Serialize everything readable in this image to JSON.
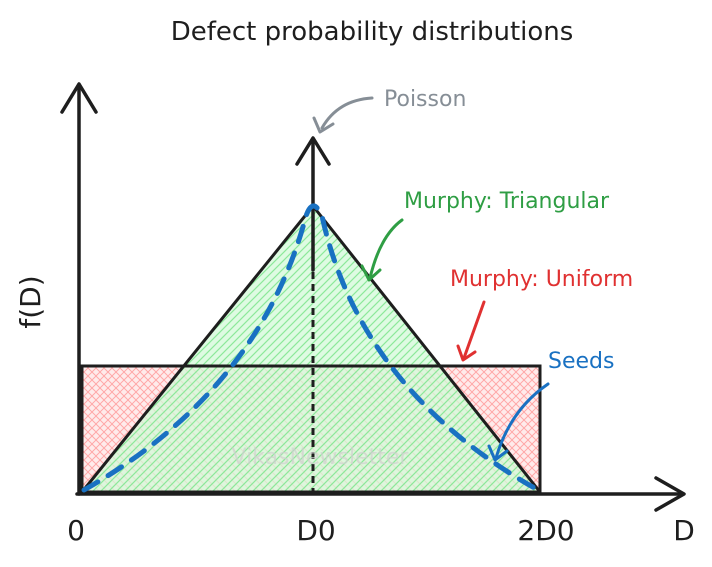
{
  "title": "Defect probability distributions",
  "labels": {
    "poisson": "Poisson",
    "triangular": "Murphy: Triangular",
    "uniform": "Murphy: Uniform",
    "seeds": "Seeds"
  },
  "axis": {
    "x_label": "D",
    "y_label": "f(D)",
    "ticks": [
      "0",
      "D0",
      "2D0"
    ]
  },
  "watermark": "VikasNewsletter",
  "colors": {
    "ink": "#1e1e1e",
    "poisson": "#868e96",
    "triangular": "#2f9e44",
    "triangular_fill": "#b2f2bb",
    "uniform": "#e03131",
    "uniform_fill": "#ffc9c9",
    "seeds": "#1971c2"
  }
}
